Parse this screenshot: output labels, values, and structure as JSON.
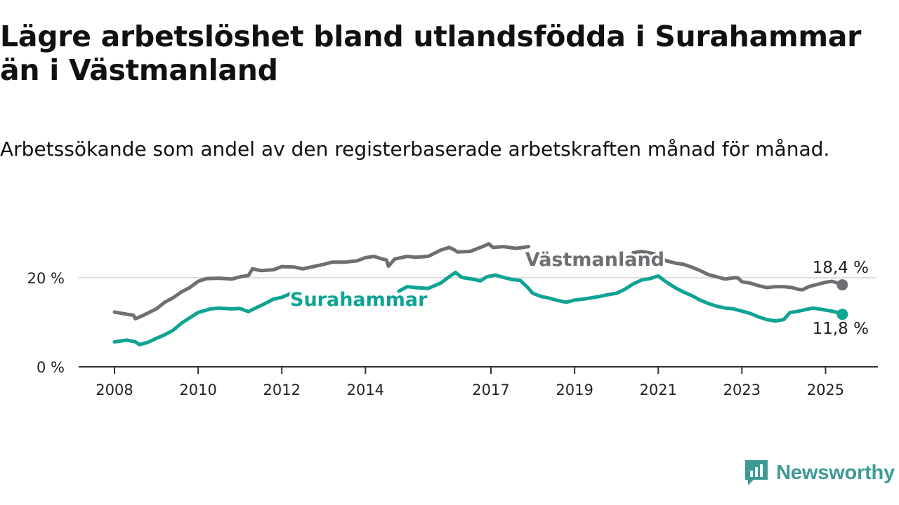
{
  "title": "Lägre arbetslöshet bland utlandsfödda i Surahammar än i Västmanland",
  "subtitle": "Arbetssökande som andel av den registerbaserade arbetskraften månad för månad.",
  "brand": {
    "name": "Newsworthy",
    "logo_icon": "bar-chart-doc-icon",
    "color": "#3d9a95"
  },
  "chart_data": {
    "type": "line",
    "xlim": [
      2008.0,
      2026.0
    ],
    "ylim": [
      0,
      30
    ],
    "grid": "horizontal",
    "x_ticks": [
      {
        "label": "2008",
        "value": 2008.0
      },
      {
        "label": "2010",
        "value": 2010.0
      },
      {
        "label": "2012",
        "value": 2012.0
      },
      {
        "label": "2014",
        "value": 2014.0
      },
      {
        "label": "2017",
        "value": 2017.0
      },
      {
        "label": "2019",
        "value": 2019.0
      },
      {
        "label": "2021",
        "value": 2021.0
      },
      {
        "label": "2023",
        "value": 2023.0
      },
      {
        "label": "2025",
        "value": 2025.0
      }
    ],
    "y_ticks": [
      {
        "label": "0 %",
        "value": 0
      },
      {
        "label": "20 %",
        "value": 20
      }
    ],
    "series": [
      {
        "name": "Västmanland",
        "color": "#6e6e73",
        "end_label": "18,4 %",
        "points": [
          [
            2008.0,
            12.3
          ],
          [
            2008.3,
            11.8
          ],
          [
            2008.45,
            11.6
          ],
          [
            2008.5,
            10.8
          ],
          [
            2008.7,
            11.6
          ],
          [
            2009.0,
            13.0
          ],
          [
            2009.2,
            14.5
          ],
          [
            2009.4,
            15.5
          ],
          [
            2009.6,
            16.8
          ],
          [
            2009.8,
            17.8
          ],
          [
            2010.0,
            19.2
          ],
          [
            2010.2,
            19.8
          ],
          [
            2010.5,
            19.9
          ],
          [
            2010.8,
            19.7
          ],
          [
            2011.0,
            20.2
          ],
          [
            2011.2,
            20.5
          ],
          [
            2011.3,
            22.0
          ],
          [
            2011.5,
            21.6
          ],
          [
            2011.8,
            21.8
          ],
          [
            2012.0,
            22.5
          ],
          [
            2012.3,
            22.4
          ],
          [
            2012.5,
            22.0
          ],
          [
            2012.8,
            22.6
          ],
          [
            2013.0,
            23.0
          ],
          [
            2013.2,
            23.5
          ],
          [
            2013.5,
            23.5
          ],
          [
            2013.8,
            23.8
          ],
          [
            2014.0,
            24.5
          ],
          [
            2014.2,
            24.8
          ],
          [
            2014.4,
            24.2
          ],
          [
            2014.5,
            24.0
          ],
          [
            2014.55,
            22.6
          ],
          [
            2014.7,
            24.2
          ],
          [
            2015.0,
            24.8
          ],
          [
            2015.2,
            24.6
          ],
          [
            2015.5,
            24.8
          ],
          [
            2015.8,
            26.2
          ],
          [
            2016.0,
            26.8
          ],
          [
            2016.1,
            26.4
          ],
          [
            2016.2,
            25.8
          ],
          [
            2016.5,
            25.9
          ],
          [
            2016.8,
            27.0
          ],
          [
            2016.95,
            27.6
          ],
          [
            2017.05,
            26.8
          ],
          [
            2017.3,
            27.0
          ],
          [
            2017.6,
            26.6
          ],
          [
            2017.9,
            27.0
          ]
        ],
        "points_b": [
          [
            2020.4,
            25.6
          ],
          [
            2020.6,
            25.9
          ],
          [
            2020.9,
            25.4
          ],
          [
            2021.0,
            24.6
          ],
          [
            2021.2,
            23.8
          ],
          [
            2021.4,
            23.3
          ],
          [
            2021.6,
            23.0
          ],
          [
            2021.8,
            22.4
          ],
          [
            2022.0,
            21.6
          ],
          [
            2022.2,
            20.7
          ],
          [
            2022.4,
            20.2
          ],
          [
            2022.6,
            19.7
          ],
          [
            2022.8,
            20.0
          ],
          [
            2022.9,
            20.0
          ],
          [
            2023.0,
            19.1
          ],
          [
            2023.2,
            18.8
          ],
          [
            2023.4,
            18.2
          ],
          [
            2023.6,
            17.8
          ],
          [
            2023.8,
            18.0
          ],
          [
            2024.0,
            18.0
          ],
          [
            2024.2,
            17.8
          ],
          [
            2024.35,
            17.4
          ],
          [
            2024.45,
            17.3
          ],
          [
            2024.6,
            18.0
          ],
          [
            2024.8,
            18.5
          ],
          [
            2025.0,
            19.0
          ],
          [
            2025.15,
            19.2
          ],
          [
            2025.3,
            18.8
          ],
          [
            2025.4,
            18.4
          ]
        ]
      },
      {
        "name": "Surahammar",
        "color": "#0fa394",
        "end_label": "11,8 %",
        "points": [
          [
            2008.0,
            5.6
          ],
          [
            2008.3,
            6.0
          ],
          [
            2008.5,
            5.6
          ],
          [
            2008.6,
            5.0
          ],
          [
            2008.8,
            5.5
          ],
          [
            2009.0,
            6.4
          ],
          [
            2009.2,
            7.2
          ],
          [
            2009.4,
            8.2
          ],
          [
            2009.6,
            9.8
          ],
          [
            2009.8,
            11.0
          ],
          [
            2010.0,
            12.2
          ],
          [
            2010.3,
            13.0
          ],
          [
            2010.5,
            13.2
          ],
          [
            2010.8,
            13.0
          ],
          [
            2011.0,
            13.1
          ],
          [
            2011.2,
            12.4
          ],
          [
            2011.4,
            13.3
          ],
          [
            2011.6,
            14.2
          ],
          [
            2011.8,
            15.2
          ],
          [
            2012.0,
            15.6
          ],
          [
            2012.2,
            16.4
          ],
          [
            2012.3,
            16.0
          ],
          [
            2014.8,
            17.0
          ],
          [
            2015.0,
            18.0
          ],
          [
            2015.2,
            17.8
          ],
          [
            2015.5,
            17.6
          ],
          [
            2015.8,
            18.8
          ],
          [
            2016.0,
            20.2
          ],
          [
            2016.15,
            21.2
          ],
          [
            2016.3,
            20.1
          ],
          [
            2016.6,
            19.6
          ],
          [
            2016.75,
            19.3
          ],
          [
            2016.9,
            20.2
          ],
          [
            2017.1,
            20.6
          ],
          [
            2017.3,
            20.1
          ],
          [
            2017.5,
            19.6
          ],
          [
            2017.7,
            19.4
          ],
          [
            2017.9,
            17.6
          ],
          [
            2018.0,
            16.5
          ],
          [
            2018.2,
            15.8
          ],
          [
            2018.4,
            15.4
          ],
          [
            2018.6,
            14.9
          ],
          [
            2018.8,
            14.5
          ],
          [
            2019.0,
            15.0
          ],
          [
            2019.2,
            15.2
          ],
          [
            2019.4,
            15.5
          ],
          [
            2019.6,
            15.8
          ],
          [
            2019.8,
            16.2
          ],
          [
            2020.0,
            16.5
          ],
          [
            2020.2,
            17.4
          ],
          [
            2020.4,
            18.6
          ],
          [
            2020.6,
            19.5
          ],
          [
            2020.8,
            19.8
          ],
          [
            2021.0,
            20.4
          ],
          [
            2021.2,
            19.0
          ],
          [
            2021.4,
            17.8
          ],
          [
            2021.6,
            16.8
          ],
          [
            2021.8,
            16.0
          ],
          [
            2022.0,
            15.0
          ],
          [
            2022.2,
            14.2
          ],
          [
            2022.4,
            13.6
          ],
          [
            2022.6,
            13.2
          ],
          [
            2022.8,
            13.0
          ],
          [
            2023.0,
            12.5
          ],
          [
            2023.2,
            12.0
          ],
          [
            2023.4,
            11.2
          ],
          [
            2023.6,
            10.6
          ],
          [
            2023.8,
            10.3
          ],
          [
            2024.0,
            10.6
          ],
          [
            2024.15,
            12.2
          ],
          [
            2024.3,
            12.4
          ],
          [
            2024.5,
            12.8
          ],
          [
            2024.7,
            13.2
          ],
          [
            2024.9,
            12.9
          ],
          [
            2025.1,
            12.6
          ],
          [
            2025.25,
            12.3
          ],
          [
            2025.4,
            11.8
          ]
        ]
      }
    ]
  }
}
